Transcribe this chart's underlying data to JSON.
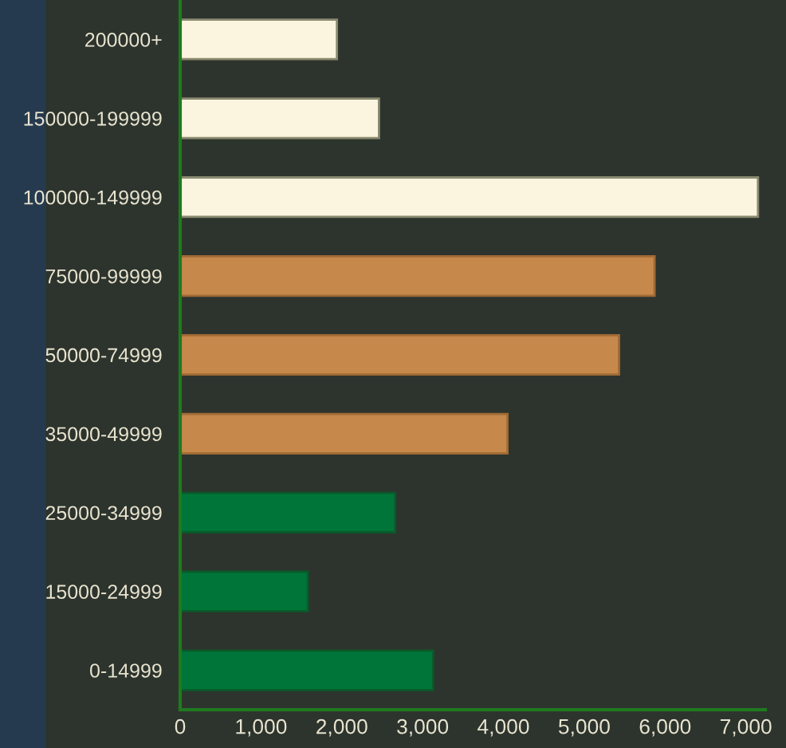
{
  "chart_data": {
    "type": "bar",
    "orientation": "horizontal",
    "categories": [
      "200000+",
      "150000-199999",
      "100000-149999",
      "75000-99999",
      "50000-74999",
      "35000-49999",
      "25000-34999",
      "15000-24999",
      "0-14999"
    ],
    "values": [
      1940,
      2460,
      7150,
      5870,
      5430,
      4050,
      2660,
      1580,
      3130
    ],
    "colors": [
      "#fbf4de",
      "#fbf4de",
      "#fbf4de",
      "#c6894b",
      "#c6894b",
      "#c6894b",
      "#00753a",
      "#00753a",
      "#00753a"
    ],
    "xlim": [
      0,
      7240
    ],
    "xticks": [
      {
        "value": 0,
        "label": "0"
      },
      {
        "value": 1000,
        "label": "1,000"
      },
      {
        "value": 2000,
        "label": "2,000"
      },
      {
        "value": 3000,
        "label": "3,000"
      },
      {
        "value": 4000,
        "label": "4,000"
      },
      {
        "value": 5000,
        "label": "5,000"
      },
      {
        "value": 6000,
        "label": "6,000"
      },
      {
        "value": 7000,
        "label": "7,000"
      }
    ],
    "grid": false
  }
}
